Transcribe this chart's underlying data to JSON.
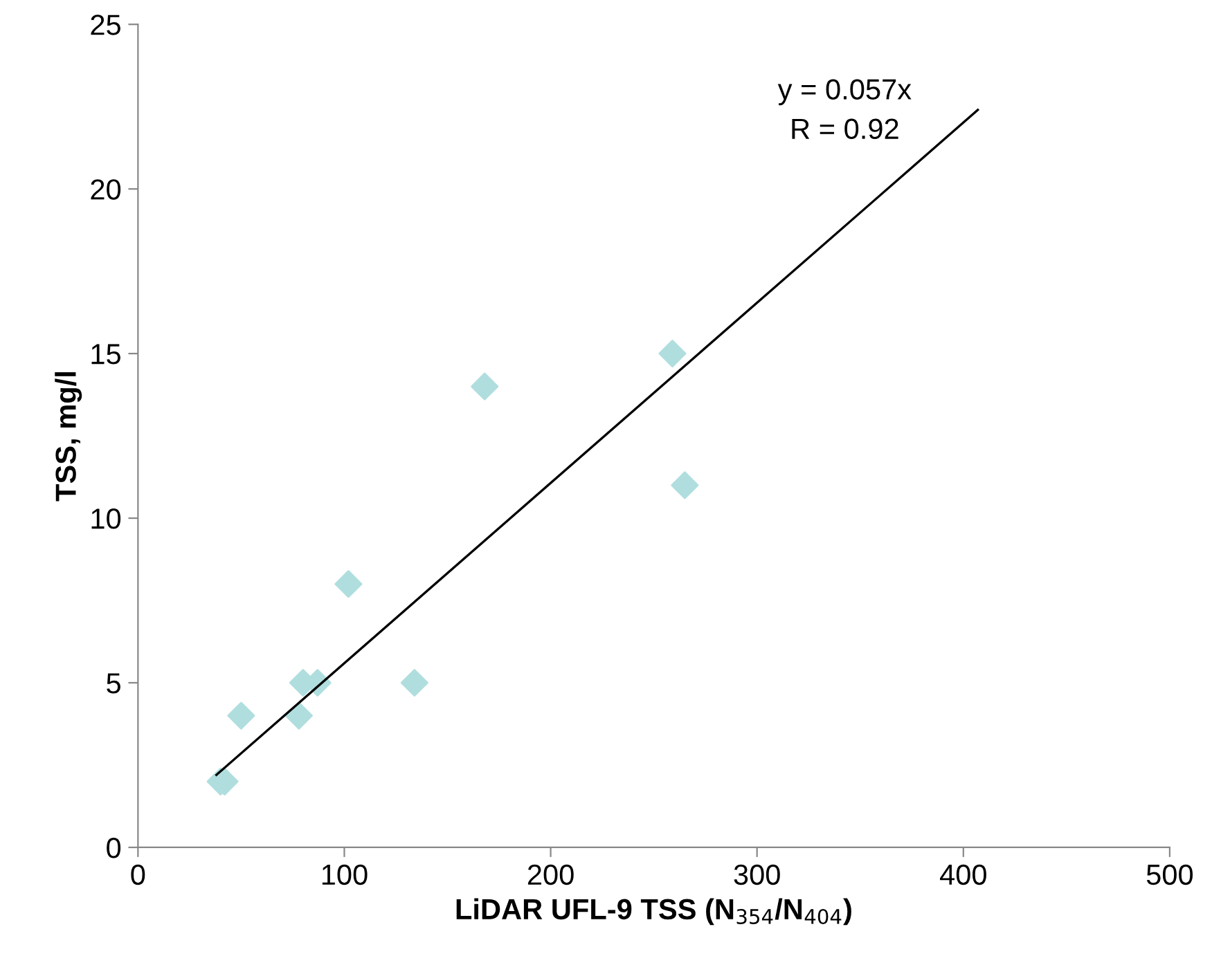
{
  "chart_data": {
    "type": "scatter",
    "xlabel": "LiDAR UFL-9 TSS (N$_{354}$/N$_{404}$)",
    "ylabel": "TSS, mg/l",
    "xlim": [
      0,
      500
    ],
    "xticks": [
      0,
      100,
      200,
      300,
      400,
      500
    ],
    "ylim": [
      0,
      25
    ],
    "yticks": [
      0,
      5,
      10,
      15,
      20,
      25
    ],
    "grid": false,
    "legend": false,
    "marker": "diamond",
    "series": [
      {
        "color": "#b0dede",
        "x": [
          40,
          42,
          50,
          78,
          80,
          87,
          102,
          134,
          168,
          259,
          265
        ],
        "values": [
          2,
          2,
          4,
          4,
          5,
          5,
          8,
          5,
          14,
          15,
          11
        ]
      },
      {
        "type": "line",
        "color": "#000000",
        "marker": "none",
        "line_style": "solid",
        "x": [
          38,
          407
        ],
        "values": [
          2.2,
          22.4
        ]
      }
    ],
    "annotations": [
      "y = 0.057x",
      "R = 0.92"
    ]
  }
}
